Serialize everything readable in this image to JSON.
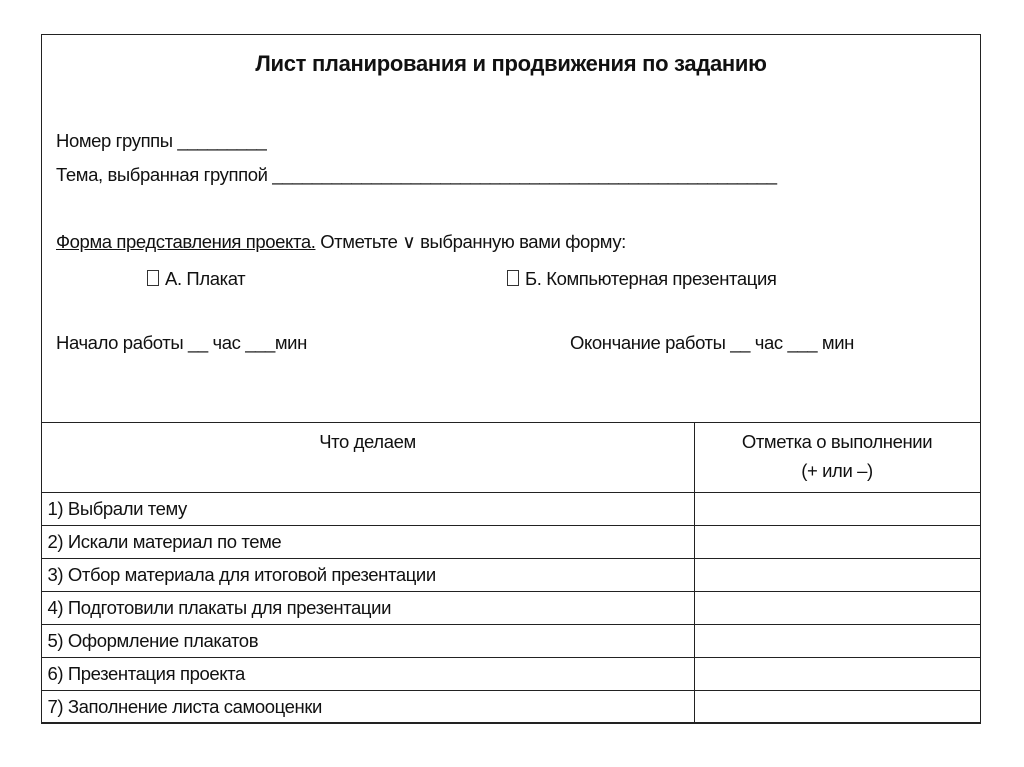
{
  "title": "Лист планирования и продвижения по заданию",
  "group_number": "Номер группы _________",
  "topic": "Тема, выбранная группой ___________________________________________________",
  "form_label": "Форма представления проекта.",
  "form_instruction": " Отметьте ∨ выбранную вами форму:",
  "options": [
    {
      "label": "А. Плакат",
      "checked": false
    },
    {
      "label": "Б. Компьютерная презентация",
      "checked": false
    }
  ],
  "start_time": "Начало работы __ час ___мин",
  "end_time": "Окончание работы __ час ___ мин",
  "table": {
    "headers": [
      "Что делаем",
      "Отметка о выполнении",
      "(+ или –)"
    ],
    "rows": [
      "1) Выбрали тему",
      "2) Искали материал по теме",
      "3) Отбор материала для итоговой презентации",
      "4) Подготовили плакаты для презентации",
      "5) Оформление плакатов",
      "6) Презентация проекта",
      "7) Заполнение листа самооценки"
    ]
  }
}
